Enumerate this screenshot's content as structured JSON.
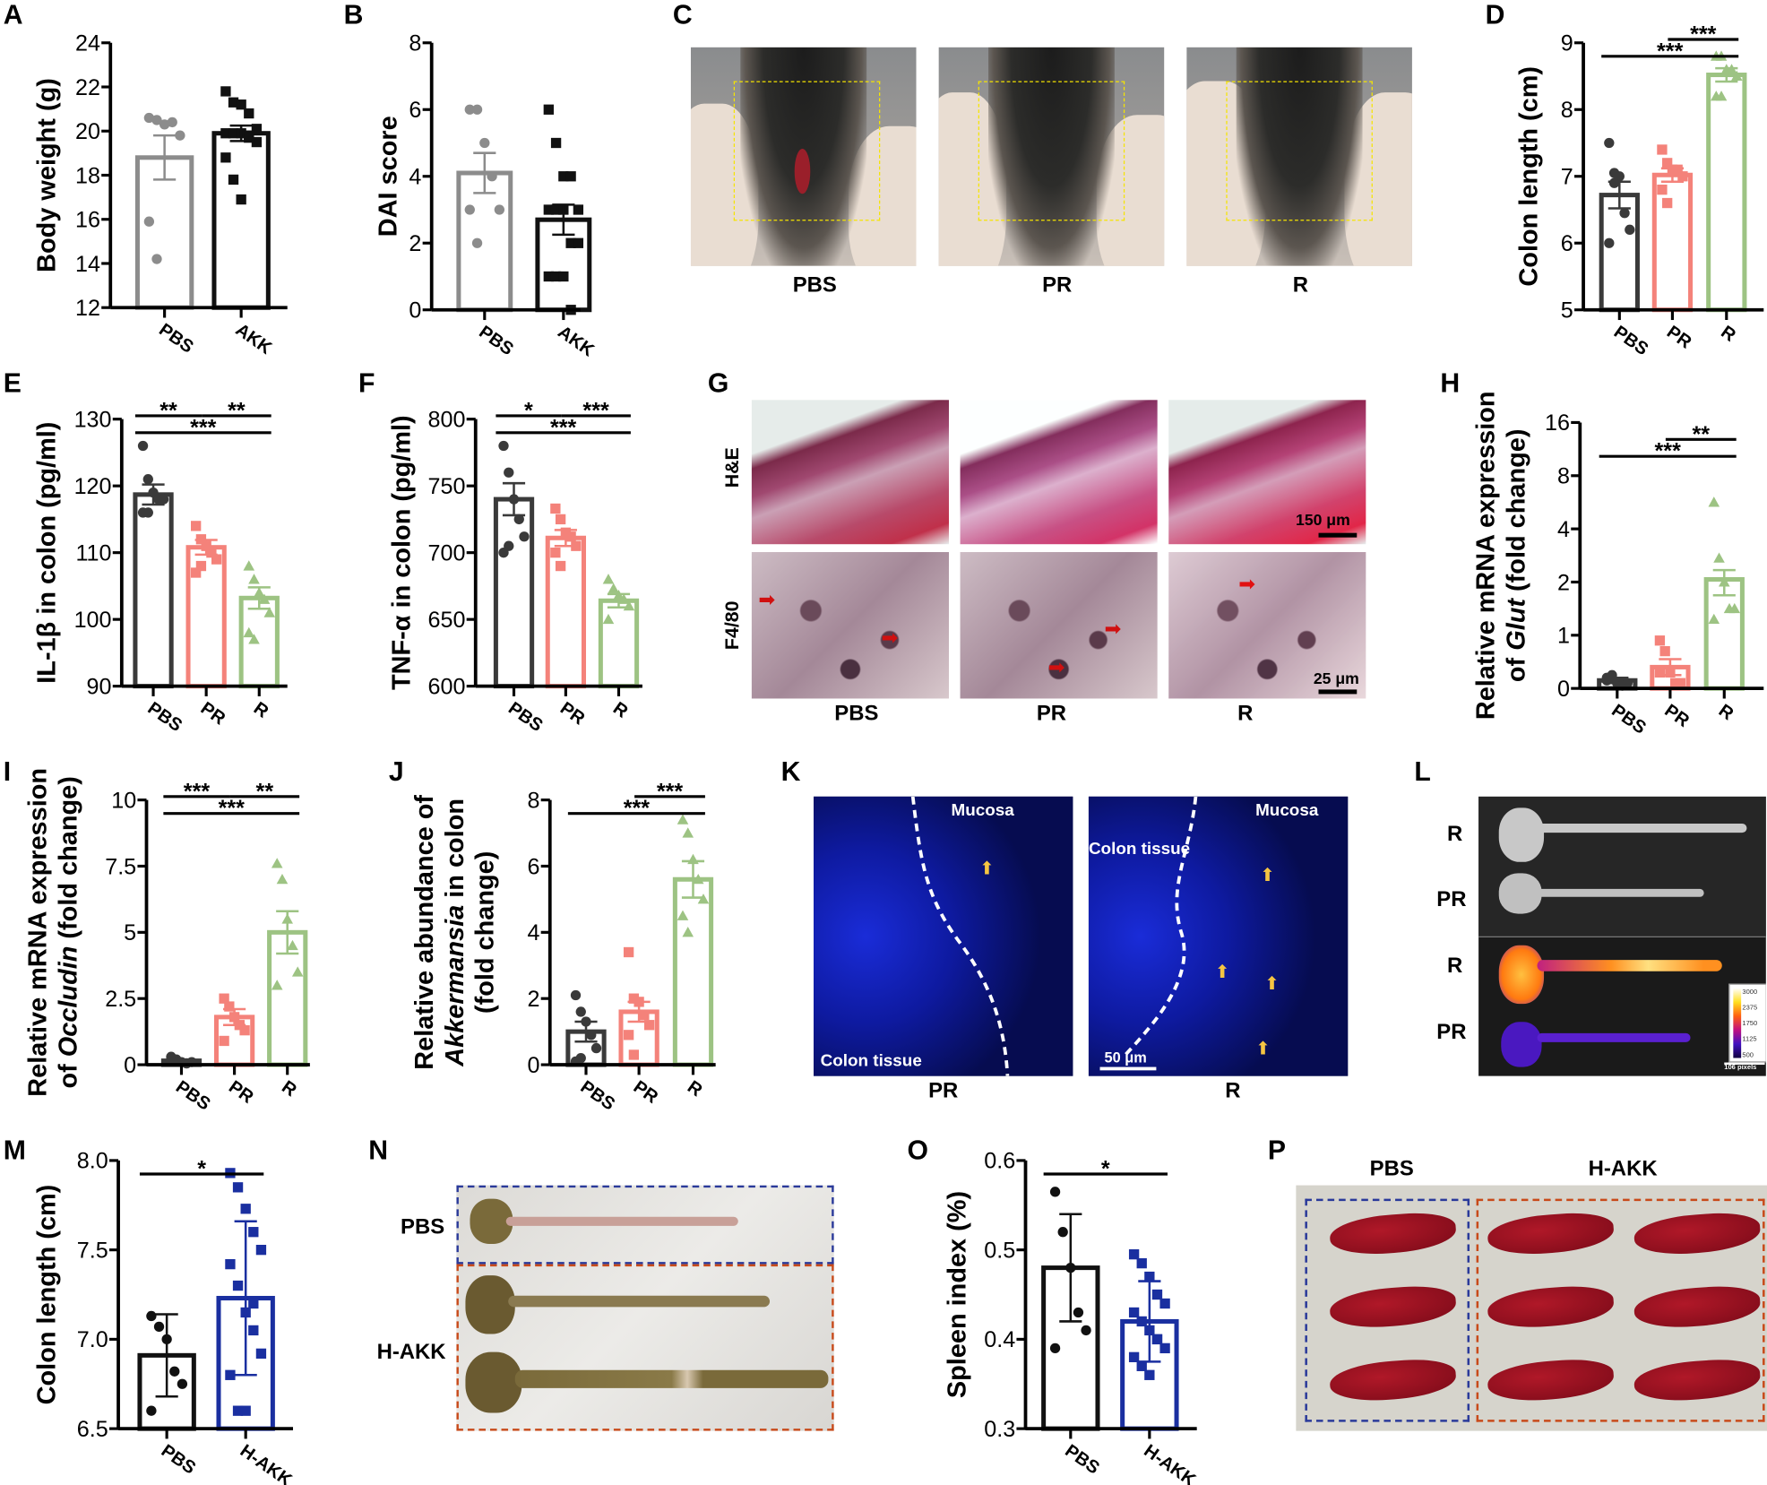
{
  "panels": {
    "A": "A",
    "B": "B",
    "C": "C",
    "D": "D",
    "E": "E",
    "F": "F",
    "G": "G",
    "H": "H",
    "I": "I",
    "J": "J",
    "K": "K",
    "L": "L",
    "M": "M",
    "N": "N",
    "O": "O",
    "P": "P"
  },
  "panel_C": {
    "labels": [
      "PBS",
      "PR",
      "R"
    ],
    "box_color": "#f5e400"
  },
  "panel_G": {
    "row_labels": [
      "H&E",
      "F4/80"
    ],
    "col_labels": [
      "PBS",
      "PR",
      "R"
    ],
    "scale_he": "150 μm",
    "scale_f480": "25 μm",
    "arrow_color": "#d01010"
  },
  "panel_K": {
    "col_labels": [
      "PR",
      "R"
    ],
    "mucosa": "Mucosa",
    "colon_tissue": "Colon tissue",
    "scale": "50 μm",
    "arrow_color": "#f5c542"
  },
  "panel_L": {
    "row_labels": [
      "R",
      "PR",
      "R",
      "PR"
    ],
    "colorbar_ticks": [
      "3000",
      "2375",
      "1750",
      "1125",
      "500"
    ],
    "scale": "106 pixels"
  },
  "panel_N": {
    "row_labels": [
      "PBS",
      "H-AKK"
    ],
    "box_colors": [
      "#2a3a9a",
      "#c84a1a"
    ]
  },
  "panel_P": {
    "col_labels": [
      "PBS",
      "H-AKK"
    ],
    "box_colors": [
      "#2a3a9a",
      "#c84a1a"
    ]
  },
  "chart_data": [
    {
      "id": "A",
      "type": "bar",
      "ylabel": [
        "Body weight (g)"
      ],
      "ylim": [
        12,
        24
      ],
      "yticks": [
        "12",
        "14",
        "16",
        "18",
        "20",
        "22",
        "24"
      ],
      "categories": [
        "PBS",
        "AKK"
      ],
      "colors": [
        "#8c8c8c",
        "#111111"
      ],
      "markers": [
        "circle",
        "square"
      ],
      "means": [
        18.8,
        19.9
      ],
      "errors": [
        1.0,
        0.35
      ],
      "points": [
        [
          20.6,
          20.5,
          20.3,
          20.4,
          19.8,
          15.9,
          14.2
        ],
        [
          21.8,
          21.3,
          21.2,
          20.8,
          20.1,
          19.9,
          19.9,
          19.9,
          19.8,
          19.5,
          18.8,
          17.8,
          16.9,
          19.7
        ]
      ],
      "significance": []
    },
    {
      "id": "B",
      "type": "bar",
      "ylabel": [
        "DAI score"
      ],
      "ylim": [
        0,
        8
      ],
      "yticks": [
        "0",
        "2",
        "4",
        "6",
        "8"
      ],
      "categories": [
        "PBS",
        "AKK"
      ],
      "colors": [
        "#8c8c8c",
        "#111111"
      ],
      "markers": [
        "circle",
        "square"
      ],
      "means": [
        4.1,
        2.7
      ],
      "errors": [
        0.6,
        0.45
      ],
      "points": [
        [
          6,
          6,
          5,
          4,
          3,
          3,
          2
        ],
        [
          6,
          5,
          4,
          4,
          3,
          3,
          3,
          3,
          2,
          2,
          1,
          1,
          1,
          0
        ]
      ],
      "significance": []
    },
    {
      "id": "D",
      "type": "bar",
      "ylabel": [
        "Colon length (cm)"
      ],
      "ylim": [
        5,
        9
      ],
      "yticks": [
        "5",
        "6",
        "7",
        "8",
        "9"
      ],
      "categories": [
        "PBS",
        "PR",
        "R"
      ],
      "colors": [
        "#3a3a3a",
        "#f4827a",
        "#9dc383"
      ],
      "markers": [
        "circle",
        "square",
        "triangle"
      ],
      "means": [
        6.72,
        7.02,
        8.52
      ],
      "errors": [
        0.2,
        0.1,
        0.1
      ],
      "points": [
        [
          7.5,
          7.05,
          7.0,
          6.45,
          6.2,
          6.0,
          6.9
        ],
        [
          7.4,
          7.2,
          7.1,
          7.1,
          7.0,
          6.8,
          6.6
        ],
        [
          8.8,
          8.8,
          8.6,
          8.6,
          8.5,
          8.2,
          8.2
        ]
      ],
      "significance": [
        {
          "from": 0,
          "to": 2,
          "label": "***",
          "tier": 1
        },
        {
          "from": 1,
          "to": 2,
          "label": "***",
          "tier": 2
        }
      ]
    },
    {
      "id": "E",
      "type": "bar",
      "ylabel": [
        "IL-1β in colon (pg/ml)"
      ],
      "ylim": [
        90,
        130
      ],
      "yticks": [
        "90",
        "100",
        "110",
        "120",
        "130"
      ],
      "categories": [
        "PBS",
        "PR",
        "R"
      ],
      "colors": [
        "#3a3a3a",
        "#f4827a",
        "#9dc383"
      ],
      "markers": [
        "circle",
        "square",
        "triangle"
      ],
      "means": [
        118.7,
        110.8,
        103.2
      ],
      "errors": [
        1.5,
        1.1,
        1.6
      ],
      "points": [
        [
          126,
          121,
          119,
          118,
          118,
          116,
          116
        ],
        [
          114,
          112,
          111,
          110,
          109,
          107,
          108
        ],
        [
          108,
          106,
          104,
          103,
          101,
          98,
          97
        ]
      ],
      "significance": [
        {
          "from": 0,
          "to": 1,
          "label": "**",
          "tier": 2
        },
        {
          "from": 1,
          "to": 2,
          "label": "**",
          "tier": 2
        },
        {
          "from": 0,
          "to": 2,
          "label": "***",
          "tier": 1
        }
      ]
    },
    {
      "id": "F",
      "type": "bar",
      "ylabel": [
        "TNF-α in colon (pg/ml)"
      ],
      "ylim": [
        600,
        800
      ],
      "yticks": [
        "600",
        "650",
        "700",
        "750",
        "800"
      ],
      "categories": [
        "PBS",
        "PR",
        "R"
      ],
      "colors": [
        "#3a3a3a",
        "#f4827a",
        "#9dc383"
      ],
      "markers": [
        "circle",
        "square",
        "triangle"
      ],
      "means": [
        740,
        711,
        664
      ],
      "errors": [
        12,
        6,
        5
      ],
      "points": [
        [
          780,
          760,
          740,
          725,
          712,
          700,
          705
        ],
        [
          733,
          725,
          715,
          712,
          705,
          700,
          690
        ],
        [
          680,
          673,
          668,
          665,
          660,
          650
        ]
      ],
      "significance": [
        {
          "from": 0,
          "to": 1,
          "label": "*",
          "tier": 2
        },
        {
          "from": 1,
          "to": 2,
          "label": "***",
          "tier": 2
        },
        {
          "from": 0,
          "to": 2,
          "label": "***",
          "tier": 1
        }
      ]
    },
    {
      "id": "H",
      "type": "bar",
      "ylabel": [
        "Relative mRNA expression",
        "of Glut (fold change)"
      ],
      "ylabel_italic": "Glut",
      "yscale": "segmented",
      "ytick_values": [
        0,
        1,
        2,
        4,
        8,
        16
      ],
      "ylim": [
        0,
        16
      ],
      "yticks": [
        "0",
        "1",
        "2",
        "4",
        "8",
        "16"
      ],
      "categories": [
        "PBS",
        "PR",
        "R"
      ],
      "colors": [
        "#3a3a3a",
        "#f4827a",
        "#9dc383"
      ],
      "markers": [
        "circle",
        "square",
        "triangle"
      ],
      "means": [
        0.15,
        0.4,
        2.1
      ],
      "errors": [
        0.05,
        0.15,
        0.35
      ],
      "points": [
        [
          0.2,
          0.25,
          0.1,
          0.05,
          0.1,
          0.15
        ],
        [
          0.9,
          0.7,
          0.3,
          0.1,
          0.1,
          0.3
        ],
        [
          6.0,
          2.9,
          2.0,
          1.5,
          1.5,
          1.3
        ]
      ],
      "significance": [
        {
          "from": 0,
          "to": 2,
          "label": "***",
          "tier": 1
        },
        {
          "from": 1,
          "to": 2,
          "label": "**",
          "tier": 2
        }
      ]
    },
    {
      "id": "I",
      "type": "bar",
      "ylabel": [
        "Relative mRNA expression",
        "of Occludin (fold change)"
      ],
      "ylabel_italic": "Occludin",
      "ylim": [
        0,
        10
      ],
      "yticks": [
        "0",
        "2.5",
        "5",
        "7.5",
        "10"
      ],
      "categories": [
        "PBS",
        "PR",
        "R"
      ],
      "colors": [
        "#3a3a3a",
        "#f4827a",
        "#9dc383"
      ],
      "markers": [
        "circle",
        "square",
        "triangle"
      ],
      "means": [
        0.15,
        1.8,
        5.0
      ],
      "errors": [
        0.05,
        0.3,
        0.8
      ],
      "points": [
        [
          0.3,
          0.2,
          0.1,
          0.05,
          0.1,
          0.15
        ],
        [
          2.5,
          2.2,
          1.8,
          1.5,
          1.3,
          0.9
        ],
        [
          7.6,
          7.0,
          5.5,
          4.5,
          3.5,
          3.0
        ]
      ],
      "significance": [
        {
          "from": 0,
          "to": 1,
          "label": "***",
          "tier": 2
        },
        {
          "from": 1,
          "to": 2,
          "label": "**",
          "tier": 2
        },
        {
          "from": 0,
          "to": 2,
          "label": "***",
          "tier": 1
        }
      ]
    },
    {
      "id": "J",
      "type": "bar",
      "ylabel": [
        "Relative abundance of",
        "Akkermansia in colon",
        "(fold change)"
      ],
      "ylabel_italic": "Akkermansia",
      "ylim": [
        0,
        8
      ],
      "yticks": [
        "0",
        "2",
        "4",
        "6",
        "8"
      ],
      "categories": [
        "PBS",
        "PR",
        "R"
      ],
      "colors": [
        "#3a3a3a",
        "#f4827a",
        "#9dc383"
      ],
      "markers": [
        "circle",
        "square",
        "triangle"
      ],
      "means": [
        1.0,
        1.6,
        5.6
      ],
      "errors": [
        0.3,
        0.3,
        0.55
      ],
      "points": [
        [
          2.1,
          1.6,
          1.3,
          0.9,
          0.5,
          0.1,
          0.2
        ],
        [
          3.4,
          2.0,
          1.9,
          1.5,
          1.2,
          0.9,
          0.3
        ],
        [
          7.4,
          7.0,
          6.2,
          5.6,
          5.0,
          4.5,
          4.0
        ]
      ],
      "significance": [
        {
          "from": 0,
          "to": 2,
          "label": "***",
          "tier": 1
        },
        {
          "from": 1,
          "to": 2,
          "label": "***",
          "tier": 2
        }
      ]
    },
    {
      "id": "M",
      "type": "bar",
      "ylabel": [
        "Colon length (cm)"
      ],
      "ylim": [
        6.5,
        8.0
      ],
      "yticks": [
        "6.5",
        "7.0",
        "7.5",
        "8.0"
      ],
      "categories": [
        "PBS",
        "H-AKK"
      ],
      "colors": [
        "#111111",
        "#1a2fa0"
      ],
      "markers": [
        "circle",
        "square"
      ],
      "means": [
        6.91,
        7.23
      ],
      "errors": [
        0.23,
        0.43
      ],
      "points": [
        [
          7.13,
          7.07,
          7.0,
          6.82,
          6.75,
          6.6
        ],
        [
          7.93,
          7.85,
          7.73,
          7.6,
          7.5,
          7.42,
          7.3,
          7.15,
          7.05,
          6.92,
          6.8,
          6.6,
          6.6,
          7.2
        ]
      ],
      "significance": [
        {
          "from": 0,
          "to": 1,
          "label": "*",
          "tier": 1
        }
      ]
    },
    {
      "id": "O",
      "type": "bar",
      "ylabel": [
        "Spleen index (%)"
      ],
      "ylim": [
        0.3,
        0.6
      ],
      "yticks": [
        "0.3",
        "0.4",
        "0.5",
        "0.6"
      ],
      "categories": [
        "PBS",
        "H-AKK"
      ],
      "colors": [
        "#111111",
        "#1a2fa0"
      ],
      "markers": [
        "circle",
        "square"
      ],
      "means": [
        0.48,
        0.42
      ],
      "errors": [
        0.06,
        0.045
      ],
      "points": [
        [
          0.565,
          0.52,
          0.48,
          0.43,
          0.41,
          0.39
        ],
        [
          0.495,
          0.485,
          0.47,
          0.45,
          0.44,
          0.43,
          0.42,
          0.41,
          0.4,
          0.39,
          0.38,
          0.37,
          0.36,
          0.4
        ]
      ],
      "significance": [
        {
          "from": 0,
          "to": 1,
          "label": "*",
          "tier": 1
        }
      ]
    }
  ]
}
